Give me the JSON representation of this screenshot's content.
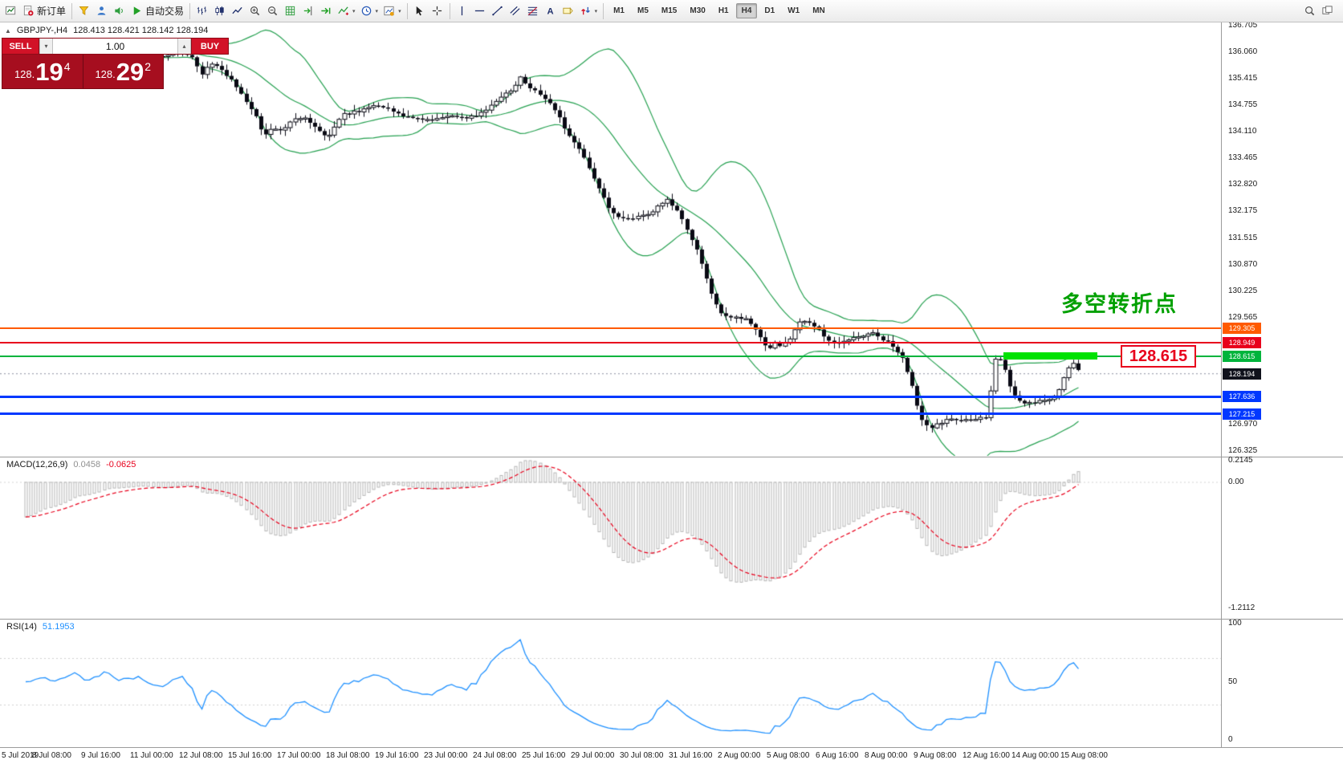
{
  "icons": {
    "collapse": "▲",
    "spin_up": "▴",
    "spin_down": "▾",
    "caret": "▾"
  },
  "toolbar": {
    "active_timeframe": "H4",
    "timeframes": [
      "M1",
      "M5",
      "M15",
      "M30",
      "H1",
      "H4",
      "D1",
      "W1",
      "MN"
    ],
    "items": [
      {
        "type": "icon",
        "name": "new-chart-button",
        "icon": "new-chart"
      },
      {
        "type": "labeled",
        "name": "new-order-button",
        "icon": "new-order",
        "label": "新订单"
      },
      {
        "type": "sep"
      },
      {
        "type": "icon",
        "name": "chart-profile-button",
        "icon": "funnel"
      },
      {
        "type": "icon",
        "name": "market-watch-button",
        "icon": "user"
      },
      {
        "type": "icon",
        "name": "navigator-button",
        "icon": "sound"
      },
      {
        "type": "labeled",
        "name": "auto-trading-button",
        "icon": "play",
        "label": "自动交易"
      },
      {
        "type": "sep"
      },
      {
        "type": "icon",
        "name": "bar-chart-type-button",
        "icon": "bars-type"
      },
      {
        "type": "icon",
        "name": "candlestick-type-button",
        "icon": "candles-type"
      },
      {
        "type": "icon",
        "name": "line-chart-type-button",
        "icon": "line-type"
      },
      {
        "type": "icon",
        "name": "zoom-in-button",
        "icon": "zoom-in"
      },
      {
        "type": "icon",
        "name": "zoom-out-button",
        "icon": "zoom-out"
      },
      {
        "type": "icon",
        "name": "grid-button",
        "icon": "grid"
      },
      {
        "type": "icon",
        "name": "chart-shift-button",
        "icon": "shift-end"
      },
      {
        "type": "icon",
        "name": "auto-scroll-button",
        "icon": "auto-scroll"
      },
      {
        "type": "icon",
        "name": "indicators-button",
        "icon": "indicators",
        "caret": true
      },
      {
        "type": "icon",
        "name": "periods-button",
        "icon": "clock",
        "caret": true
      },
      {
        "type": "icon",
        "name": "templates-button",
        "icon": "template",
        "caret": true
      },
      {
        "type": "sep"
      },
      {
        "type": "icon",
        "name": "cursor-button",
        "icon": "cursor"
      },
      {
        "type": "icon",
        "name": "crosshair-button",
        "icon": "crosshair"
      },
      {
        "type": "sep"
      },
      {
        "type": "icon",
        "name": "vertical-line-button",
        "icon": "vline"
      },
      {
        "type": "icon",
        "name": "horizontal-line-button",
        "icon": "hline-tool"
      },
      {
        "type": "icon",
        "name": "trendline-button",
        "icon": "trendline"
      },
      {
        "type": "icon",
        "name": "channel-button",
        "icon": "channel"
      },
      {
        "type": "icon",
        "name": "fibonacci-button",
        "icon": "fibo"
      },
      {
        "type": "icon",
        "name": "text-button",
        "icon": "text-tool"
      },
      {
        "type": "icon",
        "name": "label-button",
        "icon": "label-tool"
      },
      {
        "type": "icon",
        "name": "arrows-button",
        "icon": "arrows-tool",
        "caret": true
      },
      {
        "type": "sep"
      },
      {
        "type": "tf",
        "label": "M1"
      },
      {
        "type": "tf",
        "label": "M5"
      },
      {
        "type": "tf",
        "label": "M15"
      },
      {
        "type": "tf",
        "label": "M30"
      },
      {
        "type": "tf",
        "label": "H1"
      },
      {
        "type": "tf",
        "label": "H4"
      },
      {
        "type": "tf",
        "label": "D1"
      },
      {
        "type": "tf",
        "label": "W1"
      },
      {
        "type": "tf",
        "label": "MN"
      }
    ],
    "right_items": [
      {
        "type": "icon",
        "name": "search-button",
        "icon": "magnifier"
      },
      {
        "type": "icon",
        "name": "window-list-button",
        "icon": "windows"
      }
    ]
  },
  "symbol_info": {
    "symbol": "GBPJPY-,H4",
    "quotes": "128.413 128.421 128.142 128.194"
  },
  "trade_panel": {
    "sell_label": "SELL",
    "buy_label": "BUY",
    "volume": "1.00",
    "sell_price": {
      "prefix": "128.",
      "big": "19",
      "sup": "4"
    },
    "buy_price": {
      "prefix": "128.",
      "big": "29",
      "sup": "2"
    }
  },
  "annotation": {
    "text": "多空转折点",
    "color": "#00a000"
  },
  "callout": {
    "text": "128.615",
    "color": "#e8001c"
  },
  "highlight_bar": {
    "price": "128.615",
    "color": "#00e202"
  },
  "price_scale": {
    "labels": [
      "136.705",
      "136.060",
      "135.415",
      "134.755",
      "134.110",
      "133.465",
      "132.820",
      "132.175",
      "131.515",
      "130.870",
      "130.225",
      "129.565",
      "126.970",
      "126.325"
    ],
    "line_labels": [
      {
        "text": "129.305",
        "bg": "#ff5a00"
      },
      {
        "text": "128.949",
        "bg": "#e8001c"
      },
      {
        "text": "128.615",
        "bg": "#00b43c"
      },
      {
        "text": "128.194",
        "bg": "#10121c"
      },
      {
        "text": "127.636",
        "bg": "#0038ff"
      },
      {
        "text": "127.215",
        "bg": "#0038ff"
      }
    ]
  },
  "hlines": [
    {
      "price": 129.305,
      "color": "#ff5a00",
      "width": 2
    },
    {
      "price": 128.949,
      "color": "#e8001c",
      "width": 2
    },
    {
      "price": 128.615,
      "color": "#00b43c",
      "width": 2
    },
    {
      "price": 127.636,
      "color": "#0038ff",
      "width": 3
    },
    {
      "price": 127.215,
      "color": "#0038ff",
      "width": 3
    }
  ],
  "macd_panel": {
    "title": "MACD(12,26,9)",
    "value_main": "0.0458",
    "value_signal": "-0.0625",
    "scale": [
      "0.2145",
      "0.00",
      "-1.2112"
    ]
  },
  "rsi_panel": {
    "title": "RSI(14)",
    "value": "51.1953",
    "scale": [
      "100",
      "50",
      "0"
    ]
  },
  "time_axis": {
    "labels": [
      "5 Jul 2019",
      "8 Jul 08:00",
      "9 Jul 16:00",
      "11 Jul 00:00",
      "12 Jul 08:00",
      "15 Jul 16:00",
      "17 Jul 00:00",
      "18 Jul 08:00",
      "19 Jul 16:00",
      "23 Jul 00:00",
      "24 Jul 08:00",
      "25 Jul 16:00",
      "29 Jul 00:00",
      "30 Jul 08:00",
      "31 Jul 16:00",
      "2 Aug 00:00",
      "5 Aug 08:00",
      "6 Aug 16:00",
      "8 Aug 00:00",
      "9 Aug 08:00",
      "12 Aug 16:00",
      "14 Aug 00:00",
      "15 Aug 08:00"
    ]
  },
  "chart_data": {
    "type": "candlestick",
    "symbol": "GBPJPY-",
    "timeframe": "H4",
    "quote": {
      "open": 128.413,
      "high": 128.421,
      "low": 128.142,
      "close": 128.194
    },
    "price_axis_range": [
      126.21,
      136.77
    ],
    "visible_range": [
      "5 Jul 2019",
      "15 Aug 08:00"
    ],
    "horizontal_lines": [
      129.305,
      128.949,
      128.615,
      127.636,
      127.215
    ],
    "indicators": [
      {
        "name": "Bollinger Bands",
        "color": "#25a050"
      },
      {
        "name": "MACD(12,26,9)",
        "values": [
          0.0458,
          -0.0625
        ],
        "scale_max": 0.2145,
        "scale_min": -1.2112
      },
      {
        "name": "RSI(14)",
        "value": 51.1953,
        "levels": [
          30,
          70
        ]
      }
    ],
    "price_path": [
      [
        32,
        135.85
      ],
      [
        52,
        136.0
      ],
      [
        72,
        135.9
      ],
      [
        92,
        136.1
      ],
      [
        112,
        135.95
      ],
      [
        132,
        136.15
      ],
      [
        152,
        136.0
      ],
      [
        172,
        136.1
      ],
      [
        190,
        135.95
      ],
      [
        208,
        135.95
      ],
      [
        225,
        136.05
      ],
      [
        240,
        135.9
      ],
      [
        252,
        135.45
      ],
      [
        262,
        135.8
      ],
      [
        275,
        135.62
      ],
      [
        290,
        135.35
      ],
      [
        305,
        134.9
      ],
      [
        320,
        134.45
      ],
      [
        327,
        133.98
      ],
      [
        338,
        134.2
      ],
      [
        352,
        134.1
      ],
      [
        368,
        134.45
      ],
      [
        380,
        134.45
      ],
      [
        395,
        134.15
      ],
      [
        410,
        133.98
      ],
      [
        425,
        134.5
      ],
      [
        445,
        134.6
      ],
      [
        462,
        134.72
      ],
      [
        478,
        134.7
      ],
      [
        495,
        134.55
      ],
      [
        512,
        134.4
      ],
      [
        530,
        134.42
      ],
      [
        548,
        134.42
      ],
      [
        565,
        134.5
      ],
      [
        582,
        134.45
      ],
      [
        600,
        134.55
      ],
      [
        618,
        134.85
      ],
      [
        636,
        135.1
      ],
      [
        650,
        135.48
      ],
      [
        658,
        135.15
      ],
      [
        670,
        135.05
      ],
      [
        682,
        134.85
      ],
      [
        695,
        134.5
      ],
      [
        710,
        133.95
      ],
      [
        725,
        133.55
      ],
      [
        740,
        132.95
      ],
      [
        755,
        132.35
      ],
      [
        768,
        132.0
      ],
      [
        780,
        131.95
      ],
      [
        795,
        132.05
      ],
      [
        808,
        132.1
      ],
      [
        822,
        132.3
      ],
      [
        832,
        132.45
      ],
      [
        845,
        132.1
      ],
      [
        858,
        131.65
      ],
      [
        872,
        131.0
      ],
      [
        884,
        130.25
      ],
      [
        896,
        129.7
      ],
      [
        908,
        129.55
      ],
      [
        920,
        129.55
      ],
      [
        932,
        129.5
      ],
      [
        944,
        129.2
      ],
      [
        956,
        128.8
      ],
      [
        966,
        128.95
      ],
      [
        974,
        128.85
      ],
      [
        984,
        129.05
      ],
      [
        996,
        129.5
      ],
      [
        1006,
        129.5
      ],
      [
        1018,
        129.3
      ],
      [
        1030,
        129.05
      ],
      [
        1042,
        128.95
      ],
      [
        1054,
        129.0
      ],
      [
        1066,
        129.08
      ],
      [
        1078,
        129.15
      ],
      [
        1090,
        129.18
      ],
      [
        1102,
        129.0
      ],
      [
        1114,
        128.85
      ],
      [
        1126,
        128.5
      ],
      [
        1136,
        127.9
      ],
      [
        1146,
        127.15
      ],
      [
        1158,
        126.82
      ],
      [
        1170,
        127.0
      ],
      [
        1182,
        127.08
      ],
      [
        1194,
        127.05
      ],
      [
        1206,
        127.05
      ],
      [
        1218,
        127.12
      ],
      [
        1230,
        127.15
      ],
      [
        1238,
        128.55
      ],
      [
        1246,
        128.5
      ],
      [
        1252,
        128.32
      ],
      [
        1258,
        127.9
      ],
      [
        1266,
        127.62
      ],
      [
        1278,
        127.48
      ],
      [
        1290,
        127.52
      ],
      [
        1302,
        127.58
      ],
      [
        1314,
        127.62
      ],
      [
        1324,
        128.05
      ],
      [
        1332,
        128.38
      ],
      [
        1340,
        128.5
      ],
      [
        1346,
        128.19
      ]
    ]
  }
}
